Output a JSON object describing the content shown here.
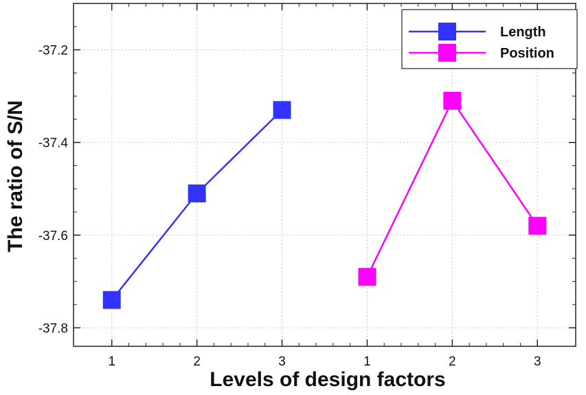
{
  "chart_data": {
    "type": "line",
    "xlabel": "Levels of design factors",
    "ylabel": "The ratio of S/N",
    "x_tick_labels": [
      "1",
      "2",
      "3",
      "1",
      "2",
      "3"
    ],
    "x_range": [
      0.55,
      6.45
    ],
    "ylim": [
      -37.84,
      -37.1
    ],
    "y_ticks": [
      -37.2,
      -37.4,
      -37.6,
      -37.8
    ],
    "y_tick_labels": [
      "-37.2",
      "-37.4",
      "-37.6",
      "-37.8"
    ],
    "grid": true,
    "legend_position": "top-right",
    "series": [
      {
        "name": "Length",
        "color": "#3333ff",
        "x": [
          1,
          2,
          3
        ],
        "y": [
          -37.74,
          -37.51,
          -37.33
        ]
      },
      {
        "name": "Position",
        "color": "#ff00ff",
        "x": [
          4,
          5,
          6
        ],
        "y": [
          -37.69,
          -37.31,
          -37.58
        ]
      }
    ]
  }
}
